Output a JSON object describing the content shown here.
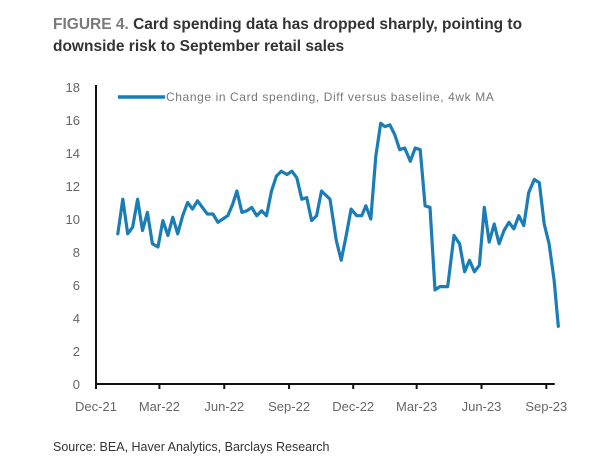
{
  "figure": {
    "label": "FIGURE 4.",
    "title": "Card spending data has dropped sharply, pointing to downside risk to September retail sales",
    "source": "Source: BEA, Haver Analytics, Barclays Research"
  },
  "chart_data": {
    "type": "line",
    "title": "Card spending data has dropped sharply, pointing to downside risk to September retail sales",
    "xlabel": "",
    "ylabel": "",
    "ylim": [
      0,
      18
    ],
    "yticks": [
      "0",
      "2",
      "4",
      "6",
      "8",
      "10",
      "12",
      "14",
      "16",
      "18"
    ],
    "xlim": [
      "2021-12-01",
      "2023-09-30"
    ],
    "xticks": [
      {
        "date": "2021-12-01",
        "label": "Dec-21"
      },
      {
        "date": "2022-03-01",
        "label": "Mar-22"
      },
      {
        "date": "2022-06-01",
        "label": "Jun-22"
      },
      {
        "date": "2022-09-01",
        "label": "Sep-22"
      },
      {
        "date": "2022-12-01",
        "label": "Dec-22"
      },
      {
        "date": "2023-03-01",
        "label": "Mar-23"
      },
      {
        "date": "2023-06-01",
        "label": "Jun-23"
      },
      {
        "date": "2023-09-01",
        "label": "Sep-23"
      }
    ],
    "grid": false,
    "legend_position": "top",
    "series": [
      {
        "name": "Change in Card spending, Diff versus baseline, 4wk MA",
        "color": "#1a7db5",
        "points": [
          [
            "2022-01-01",
            9.1
          ],
          [
            "2022-01-08",
            11.2
          ],
          [
            "2022-01-15",
            9.1
          ],
          [
            "2022-01-22",
            9.5
          ],
          [
            "2022-01-29",
            11.2
          ],
          [
            "2022-02-05",
            9.3
          ],
          [
            "2022-02-12",
            10.4
          ],
          [
            "2022-02-19",
            8.5
          ],
          [
            "2022-02-27",
            8.3
          ],
          [
            "2022-03-06",
            9.9
          ],
          [
            "2022-03-13",
            9.0
          ],
          [
            "2022-03-20",
            10.1
          ],
          [
            "2022-03-27",
            9.1
          ],
          [
            "2022-04-03",
            10.2
          ],
          [
            "2022-04-10",
            11.0
          ],
          [
            "2022-04-17",
            10.6
          ],
          [
            "2022-04-24",
            11.1
          ],
          [
            "2022-05-01",
            10.7
          ],
          [
            "2022-05-08",
            10.3
          ],
          [
            "2022-05-16",
            10.3
          ],
          [
            "2022-05-23",
            9.8
          ],
          [
            "2022-05-30",
            10.0
          ],
          [
            "2022-06-06",
            10.2
          ],
          [
            "2022-06-13",
            10.9
          ],
          [
            "2022-06-19",
            11.7
          ],
          [
            "2022-06-26",
            10.4
          ],
          [
            "2022-07-03",
            10.5
          ],
          [
            "2022-07-10",
            10.7
          ],
          [
            "2022-07-17",
            10.2
          ],
          [
            "2022-07-24",
            10.5
          ],
          [
            "2022-07-31",
            10.2
          ],
          [
            "2022-08-07",
            11.7
          ],
          [
            "2022-08-14",
            12.6
          ],
          [
            "2022-08-21",
            12.9
          ],
          [
            "2022-08-29",
            12.7
          ],
          [
            "2022-09-05",
            12.9
          ],
          [
            "2022-09-12",
            12.5
          ],
          [
            "2022-09-19",
            11.2
          ],
          [
            "2022-09-26",
            11.3
          ],
          [
            "2022-10-03",
            9.9
          ],
          [
            "2022-10-10",
            10.2
          ],
          [
            "2022-10-17",
            11.7
          ],
          [
            "2022-10-29",
            11.2
          ],
          [
            "2022-11-07",
            8.7
          ],
          [
            "2022-11-14",
            7.5
          ],
          [
            "2022-11-21",
            9.0
          ],
          [
            "2022-11-28",
            10.6
          ],
          [
            "2022-12-06",
            10.2
          ],
          [
            "2022-12-13",
            10.2
          ],
          [
            "2022-12-19",
            10.8
          ],
          [
            "2022-12-26",
            10.0
          ],
          [
            "2023-01-02",
            13.8
          ],
          [
            "2023-01-09",
            15.8
          ],
          [
            "2023-01-15",
            15.6
          ],
          [
            "2023-01-22",
            15.7
          ],
          [
            "2023-01-29",
            15.1
          ],
          [
            "2023-02-05",
            14.2
          ],
          [
            "2023-02-12",
            14.3
          ],
          [
            "2023-02-20",
            13.5
          ],
          [
            "2023-02-27",
            14.3
          ],
          [
            "2023-03-06",
            14.2
          ],
          [
            "2023-03-13",
            10.8
          ],
          [
            "2023-03-20",
            10.7
          ],
          [
            "2023-03-27",
            5.7
          ],
          [
            "2023-04-03",
            5.9
          ],
          [
            "2023-04-14",
            5.9
          ],
          [
            "2023-04-23",
            9.0
          ],
          [
            "2023-05-01",
            8.5
          ],
          [
            "2023-05-08",
            6.8
          ],
          [
            "2023-05-15",
            7.5
          ],
          [
            "2023-05-22",
            6.8
          ],
          [
            "2023-05-29",
            7.2
          ],
          [
            "2023-06-05",
            10.7
          ],
          [
            "2023-06-12",
            8.6
          ],
          [
            "2023-06-19",
            9.7
          ],
          [
            "2023-06-26",
            8.5
          ],
          [
            "2023-07-03",
            9.3
          ],
          [
            "2023-07-10",
            9.8
          ],
          [
            "2023-07-17",
            9.4
          ],
          [
            "2023-07-24",
            10.2
          ],
          [
            "2023-07-31",
            9.6
          ],
          [
            "2023-08-07",
            11.6
          ],
          [
            "2023-08-15",
            12.4
          ],
          [
            "2023-08-22",
            12.2
          ],
          [
            "2023-08-29",
            9.7
          ],
          [
            "2023-09-05",
            8.5
          ],
          [
            "2023-09-12",
            6.3
          ],
          [
            "2023-09-18",
            3.5
          ]
        ]
      }
    ]
  }
}
